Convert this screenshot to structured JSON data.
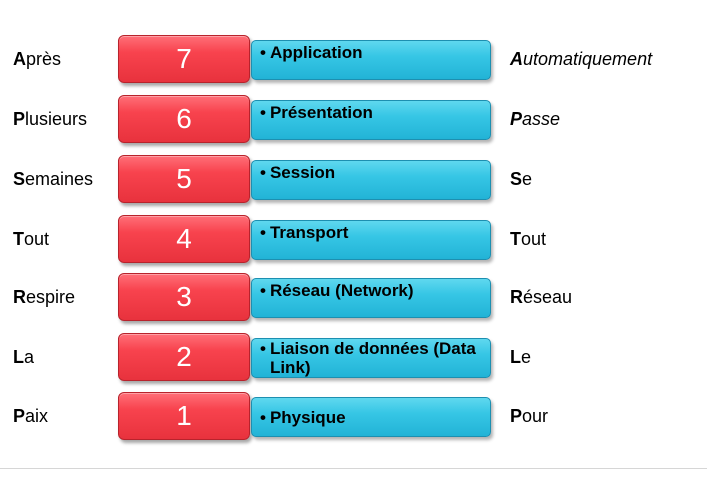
{
  "rows": [
    {
      "left_initial": "A",
      "left_rest": "près",
      "number": "7",
      "layer": "Application",
      "right_initial": "A",
      "right_rest": "utomatiquement",
      "right_italic": true
    },
    {
      "left_initial": "P",
      "left_rest": "lusieurs",
      "number": "6",
      "layer": "Présentation",
      "right_initial": "P",
      "right_rest": "asse",
      "right_italic": true
    },
    {
      "left_initial": "S",
      "left_rest": "emaines",
      "number": "5",
      "layer": "Session",
      "right_initial": "S",
      "right_rest": "e",
      "right_italic": false
    },
    {
      "left_initial": "T",
      "left_rest": "out",
      "number": "4",
      "layer": "Transport",
      "right_initial": "T",
      "right_rest": "out",
      "right_italic": false
    },
    {
      "left_initial": "R",
      "left_rest": "espire",
      "number": "3",
      "layer": "Réseau (Network)",
      "right_initial": "R",
      "right_rest": "éseau",
      "right_italic": false
    },
    {
      "left_initial": "L",
      "left_rest": "a",
      "number": "2",
      "layer": "Liaison de données (Data Link)",
      "right_initial": "L",
      "right_rest": "e",
      "right_italic": false
    },
    {
      "left_initial": "P",
      "left_rest": "aix",
      "number": "1",
      "layer": "Physique",
      "right_initial": "P",
      "right_rest": "our",
      "right_italic": false
    }
  ],
  "bullet": "•",
  "colors": {
    "number_box": "#f8434e",
    "layer_box": "#36c6e5"
  }
}
